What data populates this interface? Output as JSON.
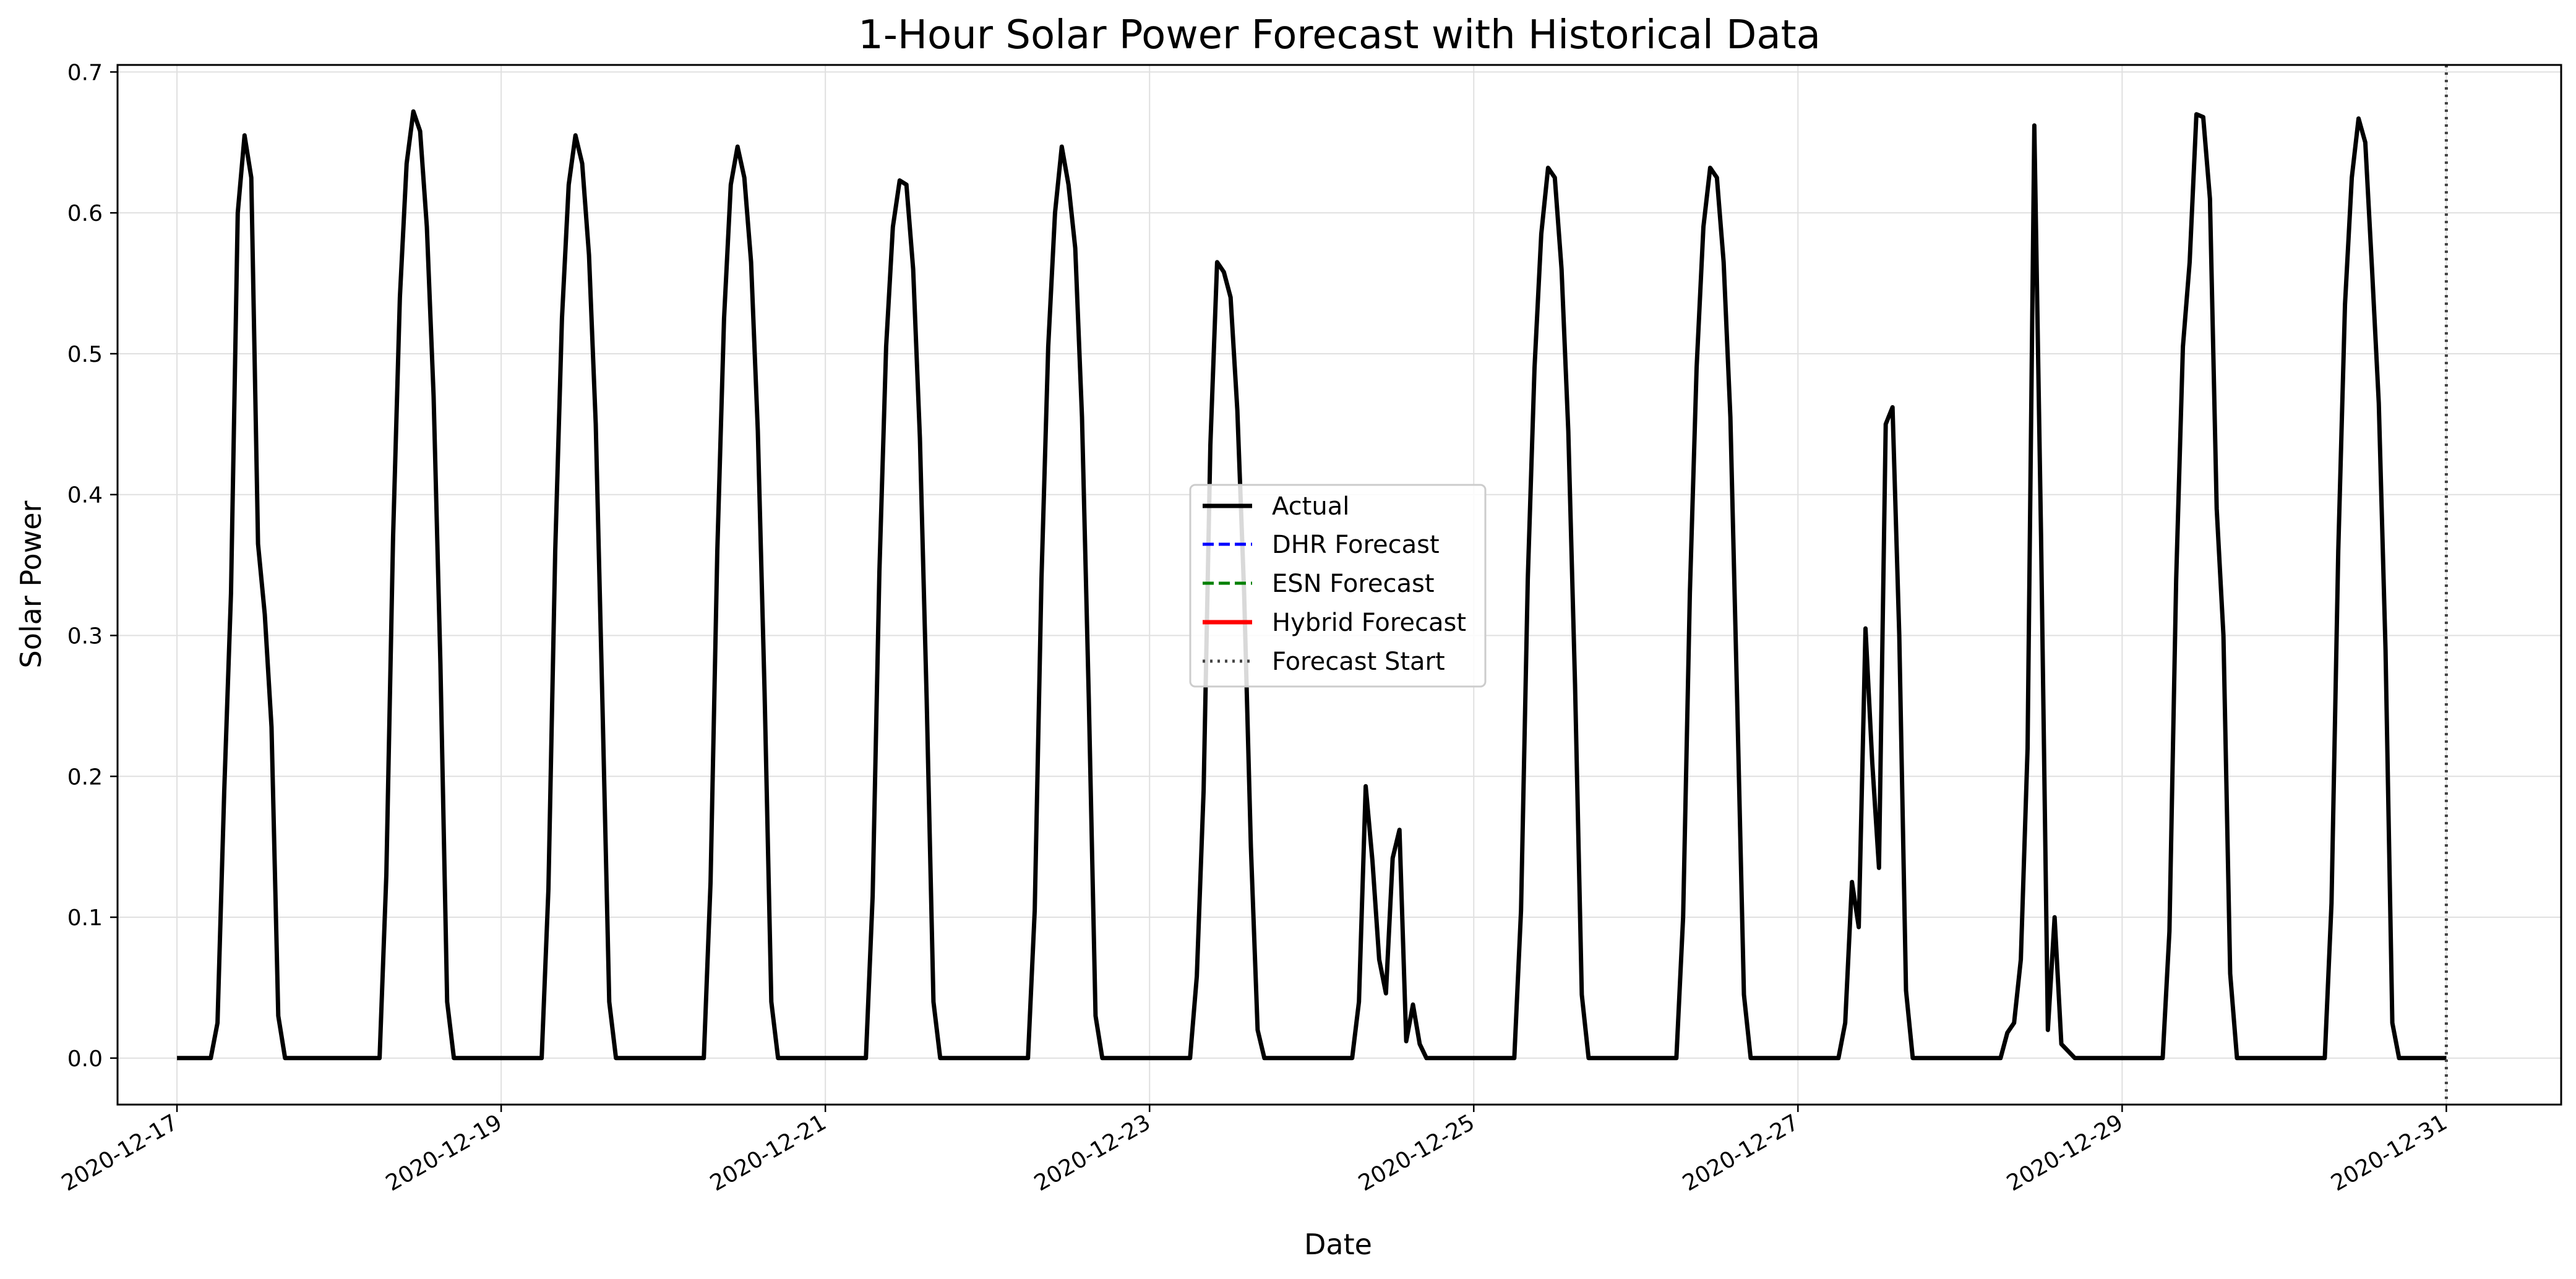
{
  "chart_data": {
    "type": "line",
    "title": "1-Hour Solar Power Forecast with Historical Data",
    "xlabel": "Date",
    "ylabel": "Solar Power",
    "x_unit": "days",
    "xlim": [
      "2020-12-16T15:12",
      "2020-12-31T17:00"
    ],
    "ylim": [
      -0.033,
      0.705
    ],
    "grid": true,
    "legend_position": "center",
    "x_ticks": [
      "2020-12-17",
      "2020-12-19",
      "2020-12-21",
      "2020-12-23",
      "2020-12-25",
      "2020-12-27",
      "2020-12-29",
      "2020-12-31"
    ],
    "y_ticks": [
      "0.0",
      "0.1",
      "0.2",
      "0.3",
      "0.4",
      "0.5",
      "0.6",
      "0.7"
    ],
    "forecast_start": "2020-12-31",
    "legend": [
      "Actual",
      "DHR Forecast",
      "ESN Forecast",
      "Hybrid Forecast",
      "Forecast Start"
    ],
    "colors": {
      "Actual": "#000000",
      "DHR Forecast": "#0000ff",
      "ESN Forecast": "#008000",
      "Hybrid Forecast": "#ff0000",
      "Forecast Start": "#444444"
    },
    "series": [
      {
        "name": "Actual",
        "x": [
          "2020-12-17 00:00",
          "2020-12-17 05:00",
          "2020-12-17 06:00",
          "2020-12-17 07:00",
          "2020-12-17 08:00",
          "2020-12-17 09:00",
          "2020-12-17 10:00",
          "2020-12-17 11:00",
          "2020-12-17 12:00",
          "2020-12-17 13:00",
          "2020-12-17 14:00",
          "2020-12-17 15:00",
          "2020-12-17 16:00",
          "2020-12-17 17:00",
          "2020-12-18 06:00",
          "2020-12-18 07:00",
          "2020-12-18 08:00",
          "2020-12-18 09:00",
          "2020-12-18 10:00",
          "2020-12-18 11:00",
          "2020-12-18 12:00",
          "2020-12-18 13:00",
          "2020-12-18 14:00",
          "2020-12-18 15:00",
          "2020-12-18 16:00",
          "2020-12-18 17:00",
          "2020-12-19 06:00",
          "2020-12-19 07:00",
          "2020-12-19 08:00",
          "2020-12-19 09:00",
          "2020-12-19 10:00",
          "2020-12-19 11:00",
          "2020-12-19 12:00",
          "2020-12-19 13:00",
          "2020-12-19 14:00",
          "2020-12-19 15:00",
          "2020-12-19 16:00",
          "2020-12-19 17:00",
          "2020-12-20 06:00",
          "2020-12-20 07:00",
          "2020-12-20 08:00",
          "2020-12-20 09:00",
          "2020-12-20 10:00",
          "2020-12-20 11:00",
          "2020-12-20 12:00",
          "2020-12-20 13:00",
          "2020-12-20 14:00",
          "2020-12-20 15:00",
          "2020-12-20 16:00",
          "2020-12-20 17:00",
          "2020-12-21 06:00",
          "2020-12-21 07:00",
          "2020-12-21 08:00",
          "2020-12-21 09:00",
          "2020-12-21 10:00",
          "2020-12-21 11:00",
          "2020-12-21 12:00",
          "2020-12-21 13:00",
          "2020-12-21 14:00",
          "2020-12-21 15:00",
          "2020-12-21 16:00",
          "2020-12-21 17:00",
          "2020-12-22 06:00",
          "2020-12-22 07:00",
          "2020-12-22 08:00",
          "2020-12-22 09:00",
          "2020-12-22 10:00",
          "2020-12-22 11:00",
          "2020-12-22 12:00",
          "2020-12-22 13:00",
          "2020-12-22 14:00",
          "2020-12-22 15:00",
          "2020-12-22 16:00",
          "2020-12-22 17:00",
          "2020-12-23 06:00",
          "2020-12-23 07:00",
          "2020-12-23 08:00",
          "2020-12-23 09:00",
          "2020-12-23 10:00",
          "2020-12-23 11:00",
          "2020-12-23 12:00",
          "2020-12-23 13:00",
          "2020-12-23 14:00",
          "2020-12-23 15:00",
          "2020-12-23 16:00",
          "2020-12-23 17:00",
          "2020-12-24 06:00",
          "2020-12-24 07:00",
          "2020-12-24 08:00",
          "2020-12-24 09:00",
          "2020-12-24 10:00",
          "2020-12-24 11:00",
          "2020-12-24 12:00",
          "2020-12-24 13:00",
          "2020-12-24 14:00",
          "2020-12-24 15:00",
          "2020-12-24 16:00",
          "2020-12-24 17:00",
          "2020-12-25 06:00",
          "2020-12-25 07:00",
          "2020-12-25 08:00",
          "2020-12-25 09:00",
          "2020-12-25 10:00",
          "2020-12-25 11:00",
          "2020-12-25 12:00",
          "2020-12-25 13:00",
          "2020-12-25 14:00",
          "2020-12-25 15:00",
          "2020-12-25 16:00",
          "2020-12-25 17:00",
          "2020-12-26 06:00",
          "2020-12-26 07:00",
          "2020-12-26 08:00",
          "2020-12-26 09:00",
          "2020-12-26 10:00",
          "2020-12-26 11:00",
          "2020-12-26 12:00",
          "2020-12-26 13:00",
          "2020-12-26 14:00",
          "2020-12-26 15:00",
          "2020-12-26 16:00",
          "2020-12-26 17:00",
          "2020-12-27 06:00",
          "2020-12-27 07:00",
          "2020-12-27 08:00",
          "2020-12-27 09:00",
          "2020-12-27 10:00",
          "2020-12-27 11:00",
          "2020-12-27 12:00",
          "2020-12-27 13:00",
          "2020-12-27 14:00",
          "2020-12-27 15:00",
          "2020-12-27 16:00",
          "2020-12-27 17:00",
          "2020-12-28 06:00",
          "2020-12-28 07:00",
          "2020-12-28 08:00",
          "2020-12-28 09:00",
          "2020-12-28 10:00",
          "2020-12-28 11:00",
          "2020-12-28 12:00",
          "2020-12-28 13:00",
          "2020-12-28 14:00",
          "2020-12-28 15:00",
          "2020-12-28 16:00",
          "2020-12-28 17:00",
          "2020-12-29 06:00",
          "2020-12-29 07:00",
          "2020-12-29 08:00",
          "2020-12-29 09:00",
          "2020-12-29 10:00",
          "2020-12-29 11:00",
          "2020-12-29 12:00",
          "2020-12-29 13:00",
          "2020-12-29 14:00",
          "2020-12-29 15:00",
          "2020-12-29 16:00",
          "2020-12-29 17:00",
          "2020-12-30 06:00",
          "2020-12-30 07:00",
          "2020-12-30 08:00",
          "2020-12-30 09:00",
          "2020-12-30 10:00",
          "2020-12-30 11:00",
          "2020-12-30 12:00",
          "2020-12-30 13:00",
          "2020-12-30 14:00",
          "2020-12-30 15:00",
          "2020-12-30 16:00",
          "2020-12-30 17:00",
          "2020-12-31 00:00"
        ],
        "y": [
          0.0,
          0.0,
          0.025,
          0.19,
          0.33,
          0.6,
          0.655,
          0.625,
          0.365,
          0.315,
          0.235,
          0.03,
          0.0,
          0.0,
          0.0,
          0.13,
          0.37,
          0.54,
          0.635,
          0.672,
          0.658,
          0.59,
          0.47,
          0.28,
          0.04,
          0.0,
          0.0,
          0.12,
          0.36,
          0.525,
          0.62,
          0.655,
          0.635,
          0.57,
          0.45,
          0.25,
          0.04,
          0.0,
          0.0,
          0.125,
          0.36,
          0.525,
          0.62,
          0.647,
          0.625,
          0.565,
          0.445,
          0.26,
          0.04,
          0.0,
          0.0,
          0.115,
          0.345,
          0.505,
          0.59,
          0.623,
          0.62,
          0.56,
          0.44,
          0.255,
          0.04,
          0.0,
          0.0,
          0.105,
          0.34,
          0.505,
          0.6,
          0.647,
          0.62,
          0.575,
          0.455,
          0.255,
          0.03,
          0.0,
          0.0,
          0.058,
          0.19,
          0.435,
          0.565,
          0.558,
          0.54,
          0.46,
          0.33,
          0.15,
          0.02,
          0.0,
          0.0,
          0.04,
          0.193,
          0.14,
          0.07,
          0.046,
          0.142,
          0.162,
          0.012,
          0.038,
          0.01,
          0.0,
          0.0,
          0.105,
          0.34,
          0.49,
          0.585,
          0.632,
          0.625,
          0.56,
          0.445,
          0.265,
          0.045,
          0.0,
          0.0,
          0.1,
          0.33,
          0.49,
          0.59,
          0.632,
          0.625,
          0.565,
          0.455,
          0.255,
          0.045,
          0.0,
          0.0,
          0.025,
          0.125,
          0.093,
          0.305,
          0.21,
          0.135,
          0.45,
          0.462,
          0.3,
          0.048,
          0.0,
          0.0,
          0.018,
          0.025,
          0.07,
          0.22,
          0.662,
          0.37,
          0.02,
          0.1,
          0.01,
          0.005,
          0.0,
          0.0,
          0.09,
          0.34,
          0.505,
          0.565,
          0.67,
          0.668,
          0.61,
          0.39,
          0.3,
          0.06,
          0.0,
          0.0,
          0.11,
          0.36,
          0.535,
          0.625,
          0.667,
          0.65,
          0.56,
          0.465,
          0.29,
          0.025,
          0.0,
          0.0
        ]
      },
      {
        "name": "DHR Forecast",
        "x": [],
        "y": []
      },
      {
        "name": "ESN Forecast",
        "x": [],
        "y": []
      },
      {
        "name": "Hybrid Forecast",
        "x": [],
        "y": []
      }
    ]
  }
}
